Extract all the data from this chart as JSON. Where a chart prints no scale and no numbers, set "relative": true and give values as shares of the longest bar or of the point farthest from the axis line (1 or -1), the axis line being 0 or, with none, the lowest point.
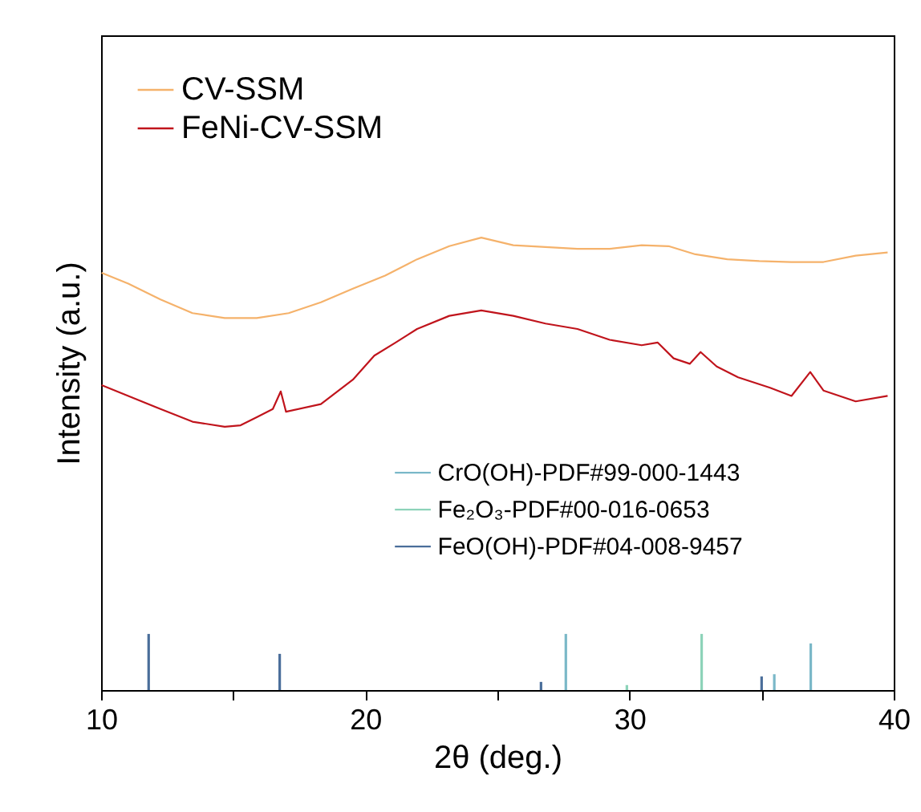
{
  "chart_data": {
    "type": "line",
    "relative": true,
    "xlabel": "2θ (deg.)",
    "ylabel": "Intensity (a.u.)",
    "xlim": [
      10,
      40
    ],
    "xticks": [
      10,
      {
        "value": 15,
        "label": null
      },
      20,
      {
        "value": 25,
        "label": null
      },
      30,
      {
        "value": 35,
        "label": null
      },
      40
    ],
    "grid": false,
    "legend": "top left",
    "line_style": "solid",
    "marker": "none",
    "series": [
      {
        "name": "CV-SSM",
        "color": "#f5b26b",
        "x": [
          10.02,
          11.03,
          12.25,
          13.46,
          14.68,
          15.89,
          17.1,
          18.32,
          19.53,
          20.75,
          21.96,
          23.18,
          24.39,
          25.6,
          26.82,
          28.03,
          29.25,
          30.46,
          31.48,
          32.49,
          33.7,
          34.91,
          36.13,
          37.34,
          38.56,
          39.77
        ],
        "values": [
          0.922,
          0.898,
          0.863,
          0.833,
          0.822,
          0.822,
          0.833,
          0.857,
          0.887,
          0.916,
          0.952,
          0.981,
          1.0,
          0.983,
          0.979,
          0.975,
          0.975,
          0.983,
          0.981,
          0.963,
          0.952,
          0.948,
          0.946,
          0.946,
          0.96,
          0.967
        ]
      },
      {
        "name": "FeNi-CV-SSM",
        "color": "#c0141c",
        "x": [
          10.02,
          11.03,
          12.25,
          13.46,
          14.68,
          15.28,
          15.89,
          16.5,
          16.8,
          17.0,
          18.32,
          19.53,
          20.34,
          21.15,
          21.96,
          23.18,
          24.39,
          25.6,
          26.82,
          28.03,
          29.25,
          30.46,
          31.07,
          31.67,
          32.28,
          32.69,
          33.3,
          34.11,
          35.32,
          36.13,
          36.84,
          37.34,
          38.56,
          39.77
        ],
        "values": [
          0.674,
          0.65,
          0.621,
          0.593,
          0.582,
          0.585,
          0.603,
          0.621,
          0.66,
          0.615,
          0.632,
          0.686,
          0.739,
          0.768,
          0.798,
          0.827,
          0.839,
          0.827,
          0.81,
          0.798,
          0.774,
          0.762,
          0.768,
          0.733,
          0.721,
          0.747,
          0.715,
          0.691,
          0.668,
          0.65,
          0.703,
          0.662,
          0.638,
          0.65
        ]
      },
      {
        "name": "CrO(OH)-PDF#99-000-1443",
        "type": "bar",
        "color": "#7ab8c8",
        "x": [
          27.59,
          35.48,
          36.86
        ],
        "values": [
          0.124,
          0.035,
          0.103
        ]
      },
      {
        "name": "Fe₂O₃-PDF#00-016-0653",
        "type": "bar",
        "color": "#8dd3b9",
        "x": [
          29.9,
          32.73
        ],
        "values": [
          0.011,
          0.124
        ]
      },
      {
        "name": "FeO(OH)-PDF#04-008-9457",
        "type": "bar",
        "color": "#4a6e9a",
        "x": [
          11.8,
          16.76,
          26.65,
          35.0
        ],
        "values": [
          0.124,
          0.08,
          0.018,
          0.03
        ]
      }
    ]
  }
}
